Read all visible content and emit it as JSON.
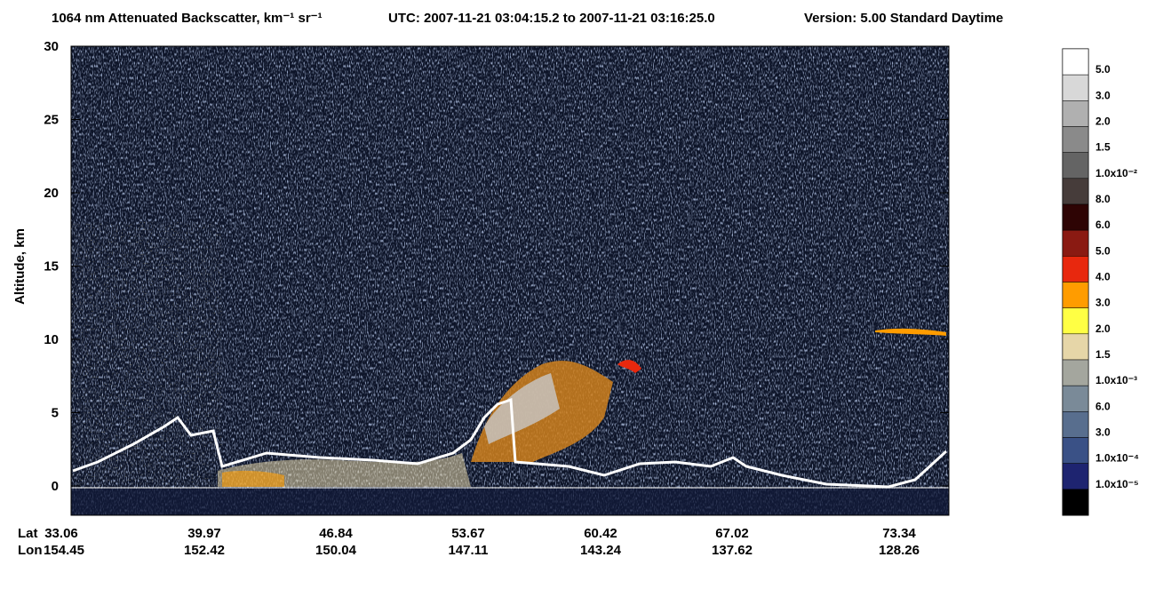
{
  "chart_data": {
    "type": "heatmap",
    "title": "1064 nm Attenuated Backscatter, km⁻¹ sr⁻¹",
    "subtitle": "UTC:  2007-11-21 03:04:15.2  to  2007-11-21 03:16:25.0",
    "note": "Version: 5.00  Standard  Daytime",
    "y_label": "Altitude, km",
    "ylim": [
      -2,
      30
    ],
    "yticks": [
      0,
      5,
      10,
      15,
      20,
      25,
      30
    ],
    "x_row_labels": [
      "Lat",
      "Lon"
    ],
    "lat": [
      33.06,
      39.97,
      46.84,
      53.67,
      60.42,
      67.02,
      73.34
    ],
    "lon": [
      154.45,
      152.42,
      150.04,
      147.11,
      143.24,
      137.62,
      128.26
    ],
    "colorbar": {
      "colors": [
        "#ffffff",
        "#d8d8d8",
        "#b0b0b0",
        "#8a8a8a",
        "#646464",
        "#463c3a",
        "#2e0404",
        "#8a1a12",
        "#e8280e",
        "#ff9c00",
        "#ffff44",
        "#e6d6a8",
        "#a4a69e",
        "#7a8a98",
        "#586e8e",
        "#3a5186",
        "#1e2470",
        "#000000"
      ],
      "labels": [
        "5.0",
        "3.0",
        "2.0",
        "1.5",
        "1.0x10⁻²",
        "8.0",
        "6.0",
        "5.0",
        "4.0",
        "3.0",
        "2.0",
        "1.5",
        "1.0x10⁻³",
        "6.0",
        "3.0",
        "1.0x10⁻⁴",
        "1.0x10⁻⁵"
      ]
    }
  }
}
